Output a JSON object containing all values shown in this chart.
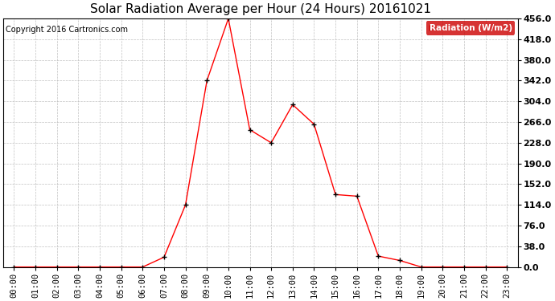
{
  "title": "Solar Radiation Average per Hour (24 Hours) 20161021",
  "copyright": "Copyright 2016 Cartronics.com",
  "legend_label": "Radiation (W/m2)",
  "hours": [
    "00:00",
    "01:00",
    "02:00",
    "03:00",
    "04:00",
    "05:00",
    "06:00",
    "07:00",
    "08:00",
    "09:00",
    "10:00",
    "11:00",
    "12:00",
    "13:00",
    "14:00",
    "15:00",
    "16:00",
    "17:00",
    "18:00",
    "19:00",
    "20:00",
    "21:00",
    "22:00",
    "23:00"
  ],
  "values": [
    0.0,
    0.0,
    0.0,
    0.0,
    0.0,
    0.0,
    0.0,
    18.0,
    114.0,
    342.0,
    456.0,
    252.0,
    228.0,
    298.0,
    262.0,
    133.0,
    130.0,
    20.0,
    12.0,
    0.0,
    0.0,
    0.0,
    0.0,
    0.0
  ],
  "y_ticks": [
    0.0,
    38.0,
    76.0,
    114.0,
    152.0,
    190.0,
    228.0,
    266.0,
    304.0,
    342.0,
    380.0,
    418.0,
    456.0
  ],
  "ylim": [
    0.0,
    456.0
  ],
  "line_color": "red",
  "marker_color": "black",
  "bg_color": "#ffffff",
  "grid_color": "#bbbbbb",
  "legend_bg": "#cc0000",
  "legend_text_color": "white",
  "title_fontsize": 11,
  "copyright_fontsize": 7,
  "tick_fontsize": 7.5,
  "ytick_fontsize": 8
}
